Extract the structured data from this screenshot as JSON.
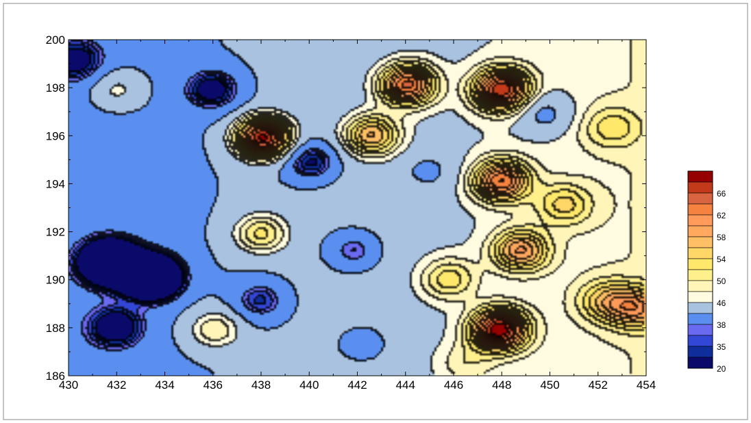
{
  "chart_data": {
    "type": "heatmap",
    "subtype": "filled-contour",
    "title": "",
    "xlabel": "",
    "ylabel": "",
    "xlim": [
      430,
      454
    ],
    "ylim": [
      186,
      200
    ],
    "xticks": [
      430,
      432,
      434,
      436,
      438,
      440,
      442,
      444,
      446,
      448,
      450,
      452,
      454
    ],
    "yticks": [
      186,
      188,
      190,
      192,
      194,
      196,
      198,
      200
    ],
    "grid": false,
    "legend_position": "right",
    "color_scale": {
      "bands": [
        {
          "level": 20,
          "color": "#0a0a6b"
        },
        {
          "level": 35,
          "color": "#0f2e9c"
        },
        {
          "level": 36,
          "color": "#3347d6"
        },
        {
          "level": 37,
          "color": "#6a6af0"
        },
        {
          "level": 38,
          "color": "#5a8ff0"
        },
        {
          "level": 42,
          "color": "#a9c2e0"
        },
        {
          "level": 46,
          "color": "#fffbe0"
        },
        {
          "level": 48,
          "color": "#fff5b8"
        },
        {
          "level": 50,
          "color": "#fff08c"
        },
        {
          "level": 52,
          "color": "#ffe86a"
        },
        {
          "level": 54,
          "color": "#ffd766"
        },
        {
          "level": 56,
          "color": "#ffbf66"
        },
        {
          "level": 58,
          "color": "#ffa85e"
        },
        {
          "level": 60,
          "color": "#ff9a5a"
        },
        {
          "level": 62,
          "color": "#f5823e"
        },
        {
          "level": 64,
          "color": "#d86440"
        },
        {
          "level": 66,
          "color": "#c23a1a"
        },
        {
          "level": 68,
          "color": "#950000"
        }
      ],
      "labels": [
        "66",
        "62",
        "58",
        "54",
        "50",
        "46",
        "38",
        "35",
        "20"
      ]
    },
    "features": [
      {
        "x": 431.8,
        "y": 190.7,
        "value": 20,
        "kind": "low"
      },
      {
        "x": 433.5,
        "y": 190.1,
        "value": 20,
        "kind": "low"
      },
      {
        "x": 432.0,
        "y": 188.0,
        "value": 35,
        "kind": "low"
      },
      {
        "x": 436.0,
        "y": 197.9,
        "value": 35,
        "kind": "low"
      },
      {
        "x": 440.1,
        "y": 194.9,
        "value": 35,
        "kind": "low"
      },
      {
        "x": 441.9,
        "y": 191.2,
        "value": 37,
        "kind": "low"
      },
      {
        "x": 438.0,
        "y": 189.1,
        "value": 37,
        "kind": "low"
      },
      {
        "x": 449.8,
        "y": 196.9,
        "value": 38,
        "kind": "low"
      },
      {
        "x": 445.0,
        "y": 194.5,
        "value": 40,
        "kind": "low"
      },
      {
        "x": 430.4,
        "y": 199.1,
        "value": 37,
        "kind": "low"
      },
      {
        "x": 442.3,
        "y": 187.3,
        "value": 40,
        "kind": "low"
      },
      {
        "x": 438.1,
        "y": 195.9,
        "value": 70,
        "kind": "high"
      },
      {
        "x": 447.9,
        "y": 187.9,
        "value": 68,
        "kind": "high"
      },
      {
        "x": 448.0,
        "y": 197.9,
        "value": 66,
        "kind": "high"
      },
      {
        "x": 444.1,
        "y": 198.1,
        "value": 64,
        "kind": "high"
      },
      {
        "x": 448.0,
        "y": 194.1,
        "value": 62,
        "kind": "high"
      },
      {
        "x": 448.8,
        "y": 191.2,
        "value": 58,
        "kind": "high"
      },
      {
        "x": 442.6,
        "y": 196.0,
        "value": 58,
        "kind": "high"
      },
      {
        "x": 438.0,
        "y": 191.9,
        "value": 54,
        "kind": "high"
      },
      {
        "x": 436.1,
        "y": 187.9,
        "value": 52,
        "kind": "high"
      },
      {
        "x": 453.6,
        "y": 188.8,
        "value": 56,
        "kind": "high"
      },
      {
        "x": 452.3,
        "y": 189.1,
        "value": 52,
        "kind": "high"
      },
      {
        "x": 432.0,
        "y": 197.9,
        "value": 50,
        "kind": "high"
      },
      {
        "x": 452.6,
        "y": 196.3,
        "value": 50,
        "kind": "high"
      },
      {
        "x": 445.8,
        "y": 190.0,
        "value": 52,
        "kind": "high"
      },
      {
        "x": 450.6,
        "y": 193.1,
        "value": 52,
        "kind": "high"
      },
      {
        "x": 433.0,
        "y": 186.2,
        "value": 44,
        "kind": "low"
      },
      {
        "x": 446.5,
        "y": 186.5,
        "value": 48,
        "kind": "high"
      }
    ]
  }
}
